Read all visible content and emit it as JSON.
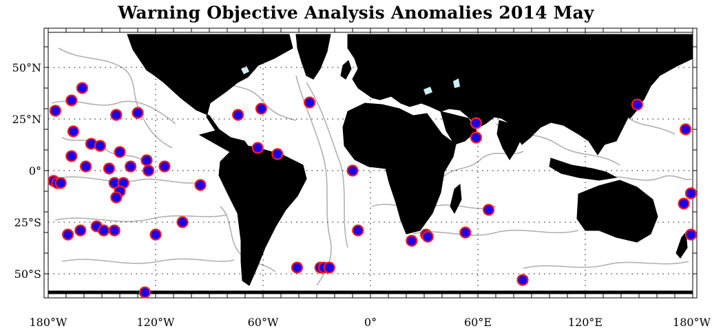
{
  "title": "Warning Objective Analysis Anomalies 2014 May",
  "colors": {
    "land": "#000000",
    "contour": "#b0b0b0",
    "ocean": "#ffffff",
    "marker_fill": "#1a00e6",
    "marker_ring": "#ff1a1a",
    "frame": "#000000",
    "grid": "#000000",
    "lake": "#cfeff5"
  },
  "axes": {
    "lon_range": [
      -180,
      180
    ],
    "lat_range": [
      -60,
      65
    ],
    "lat_ticks": [
      {
        "value": 50,
        "label": "50°N"
      },
      {
        "value": 25,
        "label": "25°N"
      },
      {
        "value": 0,
        "label": "0°"
      },
      {
        "value": -25,
        "label": "25°S"
      },
      {
        "value": -50,
        "label": "50°S"
      }
    ],
    "lon_ticks": [
      {
        "value": -180,
        "label": "180°W"
      },
      {
        "value": -120,
        "label": "120°W"
      },
      {
        "value": -60,
        "label": "60°W"
      },
      {
        "value": 0,
        "label": "0°"
      },
      {
        "value": 60,
        "label": "60°E"
      },
      {
        "value": 120,
        "label": "120°E"
      },
      {
        "value": 180,
        "label": "180°W"
      }
    ],
    "gridlines": "dotted"
  },
  "stations": [
    {
      "lon": -161,
      "lat": 40
    },
    {
      "lon": -167,
      "lat": 34
    },
    {
      "lon": -176,
      "lat": 29
    },
    {
      "lon": -142,
      "lat": 27
    },
    {
      "lon": -130,
      "lat": 28
    },
    {
      "lon": -166,
      "lat": 19
    },
    {
      "lon": -156,
      "lat": 13
    },
    {
      "lon": -151,
      "lat": 12
    },
    {
      "lon": -167,
      "lat": 7
    },
    {
      "lon": -140,
      "lat": 9
    },
    {
      "lon": -159,
      "lat": 2
    },
    {
      "lon": -146,
      "lat": 1
    },
    {
      "lon": -134,
      "lat": 2
    },
    {
      "lon": -125,
      "lat": 5
    },
    {
      "lon": -124,
      "lat": 0
    },
    {
      "lon": -115,
      "lat": 2
    },
    {
      "lon": -177,
      "lat": -5
    },
    {
      "lon": -175,
      "lat": -6
    },
    {
      "lon": -173,
      "lat": -6
    },
    {
      "lon": -143,
      "lat": -6
    },
    {
      "lon": -138,
      "lat": -6
    },
    {
      "lon": -140,
      "lat": -10
    },
    {
      "lon": -142,
      "lat": -13
    },
    {
      "lon": -95,
      "lat": -7
    },
    {
      "lon": -105,
      "lat": -25
    },
    {
      "lon": -169,
      "lat": -31
    },
    {
      "lon": -162,
      "lat": -29
    },
    {
      "lon": -153,
      "lat": -27
    },
    {
      "lon": -149,
      "lat": -29
    },
    {
      "lon": -143,
      "lat": -29
    },
    {
      "lon": -120,
      "lat": -31
    },
    {
      "lon": -126,
      "lat": -59
    },
    {
      "lon": -74,
      "lat": 27
    },
    {
      "lon": -61,
      "lat": 30
    },
    {
      "lon": -63,
      "lat": 11
    },
    {
      "lon": -52,
      "lat": 8
    },
    {
      "lon": -34,
      "lat": 33
    },
    {
      "lon": -10,
      "lat": 0
    },
    {
      "lon": -7,
      "lat": -29
    },
    {
      "lon": -41,
      "lat": -47
    },
    {
      "lon": -28,
      "lat": -47
    },
    {
      "lon": -26,
      "lat": -47
    },
    {
      "lon": -23,
      "lat": -47
    },
    {
      "lon": 23,
      "lat": -34
    },
    {
      "lon": 31,
      "lat": -31
    },
    {
      "lon": 32,
      "lat": -32
    },
    {
      "lon": 53,
      "lat": -30
    },
    {
      "lon": 66,
      "lat": -19
    },
    {
      "lon": 59,
      "lat": 23
    },
    {
      "lon": 59,
      "lat": 16
    },
    {
      "lon": 85,
      "lat": -53
    },
    {
      "lon": 149,
      "lat": 32
    },
    {
      "lon": 176,
      "lat": 20
    },
    {
      "lon": 179,
      "lat": -11
    },
    {
      "lon": 175,
      "lat": -16
    },
    {
      "lon": 179,
      "lat": -31
    }
  ]
}
